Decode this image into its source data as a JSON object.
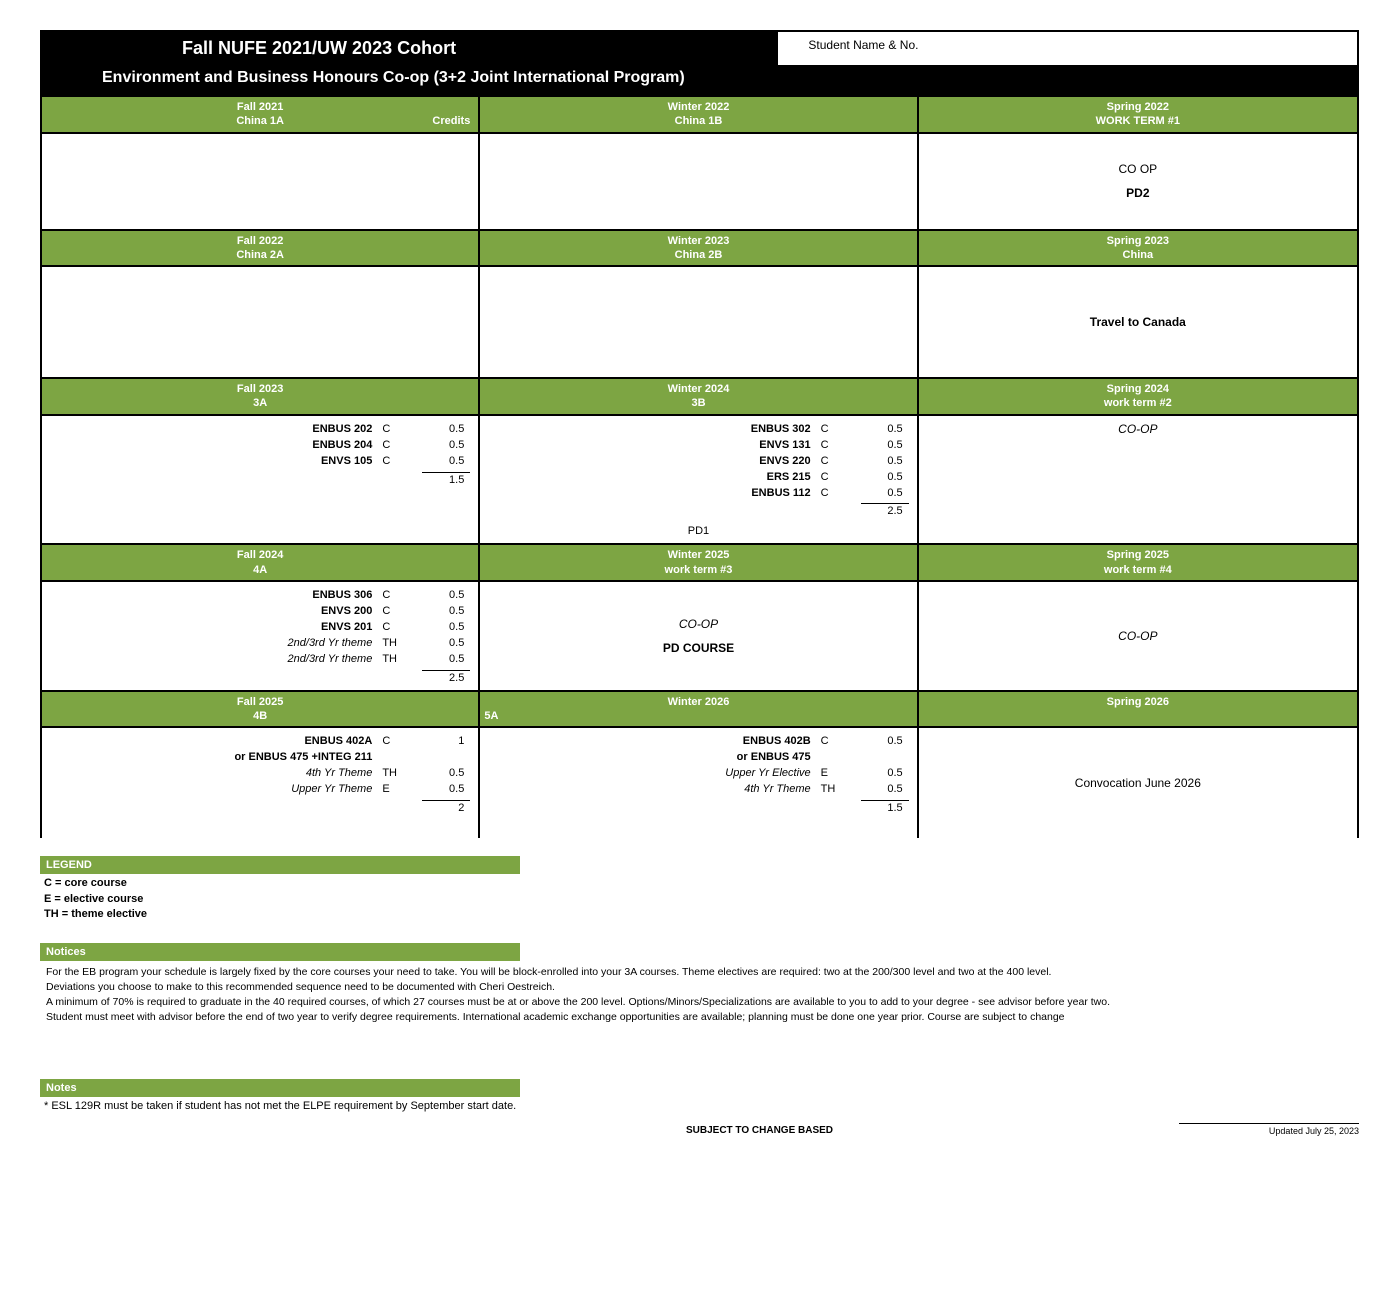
{
  "header": {
    "title": "Fall NUFE 2021/UW 2023 Cohort",
    "student_label": "Student Name & No.",
    "subtitle": "Environment and Business Honours Co-op (3+2 Joint International Program)"
  },
  "colors": {
    "green": "#7da543",
    "black": "#000000",
    "white": "#ffffff"
  },
  "rows": [
    {
      "cells": [
        {
          "h1": "Fall 2021",
          "h2": "China 1A",
          "h2_right": "Credits",
          "body_center": []
        },
        {
          "h1": "Winter 2022",
          "h2": "China 1B",
          "body_center": []
        },
        {
          "h1": "Spring 2022",
          "h2": "WORK TERM #1",
          "body_center": [
            {
              "text": "CO  OP",
              "cls": ""
            },
            {
              "text": "PD2",
              "cls": "bold"
            }
          ]
        }
      ]
    },
    {
      "cells": [
        {
          "h1": "Fall 2022",
          "h2": "China 2A",
          "body_center": []
        },
        {
          "h1": "Winter 2023",
          "h2": "China 2B",
          "body_center": []
        },
        {
          "h1": "Spring 2023",
          "h2": "China",
          "body_center": [
            {
              "text": "Travel to Canada",
              "cls": "bold"
            }
          ]
        }
      ]
    },
    {
      "cells": [
        {
          "h1": "Fall 2023",
          "h2": "3A",
          "courses": [
            {
              "name": "ENBUS 202",
              "type": "C",
              "cred": "0.5"
            },
            {
              "name": "ENBUS 204",
              "type": "C",
              "cred": "0.5"
            },
            {
              "name": "ENVS 105",
              "type": "C",
              "cred": "0.5"
            }
          ],
          "total": "1.5"
        },
        {
          "h1": "Winter 2024",
          "h2": "3B",
          "courses": [
            {
              "name": "ENBUS 302",
              "type": "C",
              "cred": "0.5"
            },
            {
              "name": "ENVS 131",
              "type": "C",
              "cred": "0.5"
            },
            {
              "name": "ENVS 220",
              "type": "C",
              "cred": "0.5"
            },
            {
              "name": "ERS 215",
              "type": "C",
              "cred": "0.5"
            },
            {
              "name": "ENBUS 112",
              "type": "C",
              "cred": "0.5"
            }
          ],
          "total": "2.5",
          "pd": "PD1"
        },
        {
          "h1": "Spring 2024",
          "h2": "work term #2",
          "body_top": [
            {
              "text": "CO-OP",
              "cls": "italic"
            }
          ]
        }
      ]
    },
    {
      "cells": [
        {
          "h1": "Fall 2024",
          "h2": "4A",
          "courses": [
            {
              "name": "ENBUS 306",
              "type": "C",
              "cred": "0.5"
            },
            {
              "name": "ENVS 200",
              "type": "C",
              "cred": "0.5"
            },
            {
              "name": "ENVS 201",
              "type": "C",
              "cred": "0.5"
            },
            {
              "name": "2nd/3rd Yr theme",
              "type": "TH",
              "cred": "0.5",
              "italic": true
            },
            {
              "name": "2nd/3rd Yr theme",
              "type": "TH",
              "cred": "0.5",
              "italic": true
            }
          ],
          "total": "2.5"
        },
        {
          "h1": "Winter 2025",
          "h2": "work term #3",
          "body_center": [
            {
              "text": "CO-OP",
              "cls": "italic"
            },
            {
              "text": "PD  COURSE",
              "cls": "bold"
            }
          ]
        },
        {
          "h1": "Spring 2025",
          "h2": "work term #4",
          "body_center": [
            {
              "text": "CO-OP",
              "cls": "italic"
            }
          ]
        }
      ]
    },
    {
      "cells": [
        {
          "h1": "Fall 2025",
          "h2": "4B",
          "courses": [
            {
              "name": "ENBUS 402A",
              "type": "C",
              "cred": "1"
            },
            {
              "name": "or ENBUS 475 +INTEG 211",
              "type": "",
              "cred": ""
            },
            {
              "name": "4th Yr Theme",
              "type": "TH",
              "cred": "0.5",
              "italic": true
            },
            {
              "name": "Upper Yr Theme",
              "type": "E",
              "cred": "0.5",
              "italic": true
            }
          ],
          "total": "2"
        },
        {
          "h1": "Winter 2026",
          "h2": "5A",
          "h2_left": true,
          "courses": [
            {
              "name": "ENBUS 402B",
              "type": "C",
              "cred": "0.5"
            },
            {
              "name": "or ENBUS 475",
              "type": "",
              "cred": ""
            },
            {
              "name": "Upper Yr Elective",
              "type": "E",
              "cred": "0.5",
              "italic": true
            },
            {
              "name": "4th Yr Theme",
              "type": "TH",
              "cred": "0.5",
              "italic": true
            }
          ],
          "total": "1.5"
        },
        {
          "h1": "Spring 2026",
          "h2": "",
          "body_center": [
            {
              "text": "Convocation June 2026",
              "cls": ""
            }
          ]
        }
      ]
    }
  ],
  "legend": {
    "title": "LEGEND",
    "lines": [
      "C = core course",
      "E = elective course",
      "TH = theme elective"
    ]
  },
  "notices": {
    "title": "Notices",
    "lines": [
      "For the EB program your schedule is largely fixed by the core courses your need to take. You will be block-enrolled into your 3A courses. Theme electives are required: two at the 200/300 level and two at the 400 level.",
      "Deviations you choose to make to this recommended sequence need to be documented with Cheri Oestreich.",
      "A minimum of 70% is required to graduate in the 40 required courses, of which 27 courses must be at or above the 200 level. Options/Minors/Specializations are available to you to add to your degree - see advisor before year two.",
      "Student must meet with advisor before the end of two year to verify degree requirements. International academic exchange opportunities are available; planning must be done one year prior.  Course are subject to change"
    ]
  },
  "notes": {
    "title": "Notes",
    "lines": [
      "* ESL 129R must be taken if student has not met the ELPE requirement by September start date."
    ]
  },
  "footer": {
    "center": "SUBJECT TO CHANGE BASED",
    "right": "Updated July 25, 2023"
  }
}
